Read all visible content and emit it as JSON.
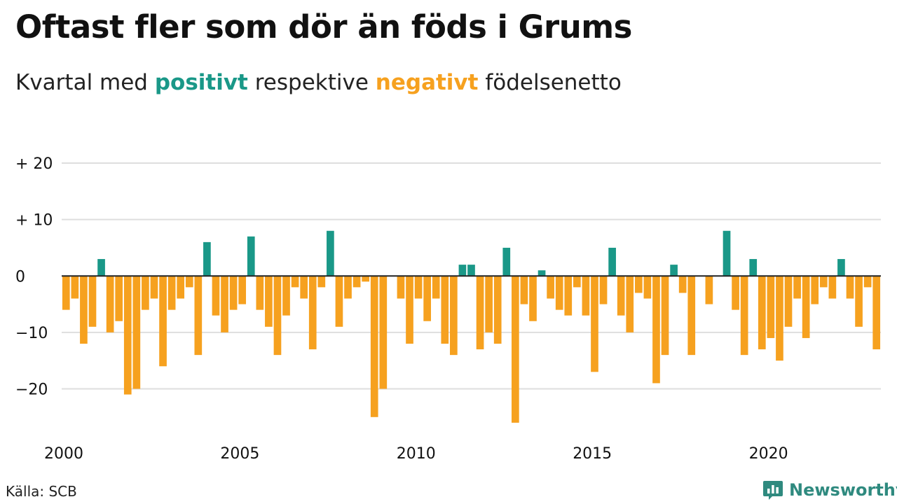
{
  "title": "Oftast fler som dör än föds i Grums",
  "subtitle": {
    "prefix": "Kvartal med ",
    "positive": "positivt",
    "middle": " respektive ",
    "negative": "negativt",
    "suffix": " födelsenetto"
  },
  "source": "Källa: SCB",
  "brand": {
    "name": "Newsworthy",
    "icon": "newsworthy-logo-icon"
  },
  "colors": {
    "positive": "#1a9888",
    "negative": "#f6a11f",
    "grid": "#dedede",
    "zero_line": "#222222",
    "text": "#111111"
  },
  "chart_data": {
    "type": "bar",
    "x_start": "2000 Q1",
    "x_ticks": [
      2000,
      2005,
      2010,
      2015,
      2020
    ],
    "y_ticks": [
      20,
      10,
      0,
      -10,
      -20
    ],
    "y_tick_labels": [
      "+ 20",
      "+ 10",
      "0",
      "−10",
      "−20"
    ],
    "ylim": [
      -28,
      20
    ],
    "grid": true,
    "series": [
      {
        "values": [
          -6,
          -4,
          -12,
          -9,
          3,
          -10,
          -8,
          -21,
          -20,
          -6,
          -4,
          -16,
          -6,
          -4,
          -2,
          -14,
          6,
          -7,
          -10,
          -6,
          -5,
          7,
          -6,
          -9,
          -14,
          -7,
          -2,
          -4,
          -13,
          -2,
          8,
          -9,
          -4,
          -2,
          -1,
          -25,
          -20,
          0,
          -4,
          -12,
          -4,
          -8,
          -4,
          -12,
          -14,
          2,
          2,
          -13,
          -10,
          -12,
          5,
          -26,
          -5,
          -8,
          1,
          -4,
          -6,
          -7,
          -2,
          -7,
          -17,
          -5,
          5,
          -7,
          -10,
          -3,
          -4,
          -19,
          -14,
          2,
          -3,
          -14,
          0,
          -5,
          0,
          8,
          -6,
          -14,
          3,
          -13,
          -11,
          -15,
          -9,
          -4,
          -11,
          -5,
          -2,
          -4,
          3,
          -4,
          -9,
          -2,
          -13
        ]
      }
    ]
  }
}
